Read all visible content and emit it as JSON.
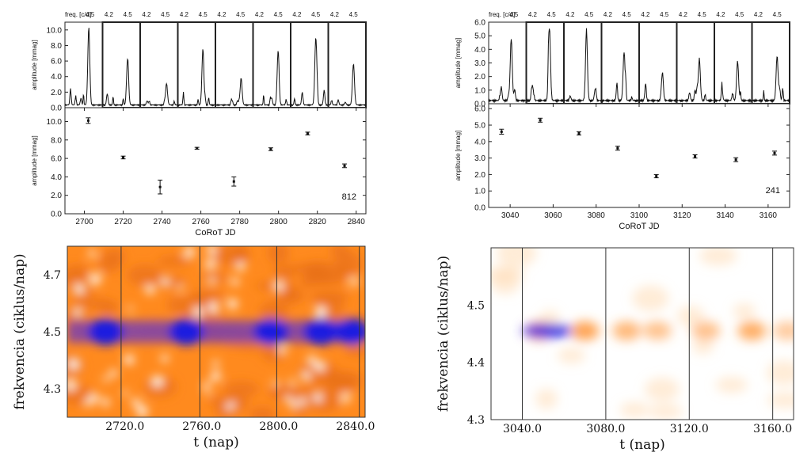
{
  "chart_data": [
    {
      "id": "tl-spectra",
      "type": "line",
      "column_header": "freq. [c/d]",
      "panel_tick_labels": [
        "4.2",
        "4.5"
      ],
      "ylabel": "amplitude [mmag]",
      "ylim": [
        0,
        11
      ],
      "yticks": [
        "0.0",
        "2.0",
        "4.0",
        "6.0",
        "8.0",
        "10.0"
      ],
      "xlim_per_panel": [
        4.1,
        4.7
      ],
      "panels": [
        {
          "peak_freq": 4.48,
          "peak_amp": 10.0
        },
        {
          "peak_freq": 4.5,
          "peak_amp": 6.0
        },
        {
          "peak_freq": 4.52,
          "peak_amp": 2.8
        },
        {
          "peak_freq": 4.5,
          "peak_amp": 7.2
        },
        {
          "peak_freq": 4.51,
          "peak_amp": 3.5
        },
        {
          "peak_freq": 4.5,
          "peak_amp": 7.0
        },
        {
          "peak_freq": 4.5,
          "peak_amp": 8.6
        },
        {
          "peak_freq": 4.5,
          "peak_amp": 5.1
        }
      ]
    },
    {
      "id": "tl-amplitude",
      "type": "scatter",
      "xlabel": "CoRoT JD",
      "ylabel": "amplitude [mmag]",
      "xlim": [
        2690,
        2845
      ],
      "ylim": [
        0,
        11.5
      ],
      "xticks": [
        2700,
        2720,
        2740,
        2760,
        2780,
        2800,
        2820,
        2840
      ],
      "yticks": [
        "0.0",
        "2.0",
        "4.0",
        "6.0",
        "8.0",
        "10.0"
      ],
      "annotation": "812",
      "points": [
        {
          "x": 2702,
          "y": 10.1,
          "err": 0.3
        },
        {
          "x": 2720,
          "y": 6.1,
          "err": 0.15
        },
        {
          "x": 2739,
          "y": 2.9,
          "err": 0.75
        },
        {
          "x": 2758,
          "y": 7.1,
          "err": 0.1
        },
        {
          "x": 2777,
          "y": 3.5,
          "err": 0.5
        },
        {
          "x": 2796,
          "y": 7.0,
          "err": 0.15
        },
        {
          "x": 2815,
          "y": 8.7,
          "err": 0.15
        },
        {
          "x": 2834,
          "y": 5.2,
          "err": 0.2
        }
      ]
    },
    {
      "id": "tr-spectra",
      "type": "line",
      "column_header": "freq. [c/d]",
      "panel_tick_labels": [
        "4.2",
        "4.5"
      ],
      "ylabel": "amplitude [mmag]",
      "ylim": [
        0,
        6
      ],
      "yticks": [
        "0.0",
        "1.0",
        "2.0",
        "3.0",
        "4.0",
        "5.0",
        "6.0"
      ],
      "xlim_per_panel": [
        4.1,
        4.7
      ],
      "panels": [
        {
          "peak_freq": 4.46,
          "peak_amp": 4.6
        },
        {
          "peak_freq": 4.47,
          "peak_amp": 5.3
        },
        {
          "peak_freq": 4.46,
          "peak_amp": 4.5
        },
        {
          "peak_freq": 4.46,
          "peak_amp": 3.6
        },
        {
          "peak_freq": 4.47,
          "peak_amp": 1.9
        },
        {
          "peak_freq": 4.46,
          "peak_amp": 3.1
        },
        {
          "peak_freq": 4.47,
          "peak_amp": 2.9
        },
        {
          "peak_freq": 4.5,
          "peak_amp": 3.3
        }
      ]
    },
    {
      "id": "tr-amplitude",
      "type": "scatter",
      "xlabel": "CoRoT JD",
      "ylabel": "amplitude [mmag]",
      "xlim": [
        3030,
        3170
      ],
      "ylim": [
        0,
        6.3
      ],
      "xticks": [
        3040,
        3060,
        3080,
        3100,
        3120,
        3140,
        3160
      ],
      "yticks": [
        "0.0",
        "1.0",
        "2.0",
        "3.0",
        "4.0",
        "5.0",
        "6.0"
      ],
      "annotation": "241",
      "points": [
        {
          "x": 3036,
          "y": 4.6,
          "err": 0.15
        },
        {
          "x": 3054,
          "y": 5.3,
          "err": 0.12
        },
        {
          "x": 3072,
          "y": 4.5,
          "err": 0.1
        },
        {
          "x": 3090,
          "y": 3.6,
          "err": 0.12
        },
        {
          "x": 3108,
          "y": 1.9,
          "err": 0.1
        },
        {
          "x": 3126,
          "y": 3.1,
          "err": 0.1
        },
        {
          "x": 3145,
          "y": 2.9,
          "err": 0.12
        },
        {
          "x": 3163,
          "y": 3.3,
          "err": 0.12
        }
      ]
    },
    {
      "id": "bl-heatmap",
      "type": "heatmap",
      "xlabel": "t (nap)",
      "ylabel": "frekvencia (ciklus/nap)",
      "xlim": [
        2690,
        2845
      ],
      "ylim": [
        4.2,
        4.8
      ],
      "xticks": [
        "2720.0",
        "2760.0",
        "2800.0",
        "2840.0"
      ],
      "xtick_values": [
        2720,
        2760,
        2800,
        2840
      ],
      "yticks": [
        "4.3",
        "4.5",
        "4.7"
      ],
      "ytick_values": [
        4.3,
        4.5,
        4.7
      ],
      "colormap": [
        "#ffffff",
        "#ff8a1e",
        "#e8701a",
        "#7a3fb0",
        "#1a1ae0"
      ],
      "background": "orange",
      "ridge_freq": 4.5,
      "dividers": [
        2718,
        2759,
        2799,
        2842
      ]
    },
    {
      "id": "br-heatmap",
      "type": "heatmap",
      "xlabel": "t (nap)",
      "ylabel": "frekvencia (ciklus/nap)",
      "xlim": [
        3025,
        3170
      ],
      "ylim": [
        4.3,
        4.6
      ],
      "xticks": [
        "3040.0",
        "3080.0",
        "3120.0",
        "3160.0"
      ],
      "xtick_values": [
        3040,
        3080,
        3120,
        3160
      ],
      "yticks": [
        "4.3",
        "4.4",
        "4.5"
      ],
      "ytick_values": [
        4.3,
        4.4,
        4.5
      ],
      "colormap": [
        "#ffffff",
        "#ffd9b0",
        "#ff9a40",
        "#1a1ae0"
      ],
      "background": "white",
      "ridge_freq": 4.455,
      "dividers": [
        3040,
        3080,
        3120,
        3160
      ]
    }
  ]
}
